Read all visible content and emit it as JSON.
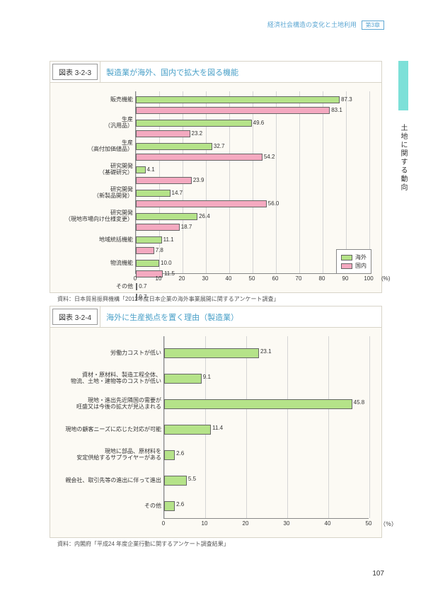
{
  "header": {
    "text": "経済社会構造の変化と土地利用",
    "chapter": "第3章"
  },
  "side_tab_text": "土地に関する動向",
  "page_number": "107",
  "chart1": {
    "title_num": "図表 3-2-3",
    "title_text": "製造業が海外、国内で拡大を図る機能",
    "type": "grouped-horizontal-bar",
    "x_max": 100,
    "x_ticks": [
      0,
      10,
      20,
      30,
      40,
      50,
      60,
      70,
      80,
      90,
      100
    ],
    "x_unit": "(%)",
    "colors": {
      "overseas": "#b5e389",
      "domestic": "#f4a9c0"
    },
    "legend": [
      {
        "label": "海外",
        "color": "#b5e389"
      },
      {
        "label": "国内",
        "color": "#f4a9c0"
      }
    ],
    "categories": [
      {
        "label": "販売機能",
        "overseas": 87.3,
        "domestic": 83.1
      },
      {
        "label": "生産\n（汎用品）",
        "overseas": 49.6,
        "domestic": 23.2
      },
      {
        "label": "生産\n（高付加価値品）",
        "overseas": 32.7,
        "domestic": 54.2
      },
      {
        "label": "研究開発\n（基礎研究）",
        "overseas": 4.1,
        "domestic": 23.9
      },
      {
        "label": "研究開発\n（新製品開発）",
        "overseas": 14.7,
        "domestic": 56.0
      },
      {
        "label": "研究開発\n（現地市場向け仕様変更）",
        "overseas": 26.4,
        "domestic": 18.7
      },
      {
        "label": "地域統括機能",
        "overseas": 11.1,
        "domestic": 7.8
      },
      {
        "label": "物流機能",
        "overseas": 10.0,
        "domestic": 11.5
      },
      {
        "label": "その他",
        "overseas": 0.7,
        "domestic": 0.7
      }
    ],
    "source": "資料：日本貿易振興機構「2012年度日本企業の海外事業展開に関するアンケート調査」"
  },
  "chart2": {
    "title_num": "図表 3-2-4",
    "title_text": "海外に生産拠点を置く理由（製造業）",
    "type": "horizontal-bar",
    "x_max": 50,
    "x_ticks": [
      0,
      10,
      20,
      30,
      40,
      50
    ],
    "x_unit": "（％）",
    "bar_color": "#b5e389",
    "categories": [
      {
        "label": "労働力コストが低い",
        "value": 23.1
      },
      {
        "label": "資材・原材料、製造工程全体、\n物流、土地・建物等のコストが低い",
        "value": 9.1
      },
      {
        "label": "現地・進出先近隣国の需要が\n旺盛又は今後の拡大が見込まれる",
        "value": 45.8
      },
      {
        "label": "現地の顧客ニーズに応じた対応が可能",
        "value": 11.4
      },
      {
        "label": "現地に部品、原材料を\n安定供給するサプライヤーがある",
        "value": 2.6
      },
      {
        "label": "親会社、取引先等の進出に伴って進出",
        "value": 5.5
      },
      {
        "label": "その他",
        "value": 2.6
      }
    ],
    "source": "資料：内閣府「平成24 年度企業行動に関するアンケート調査結果」"
  }
}
